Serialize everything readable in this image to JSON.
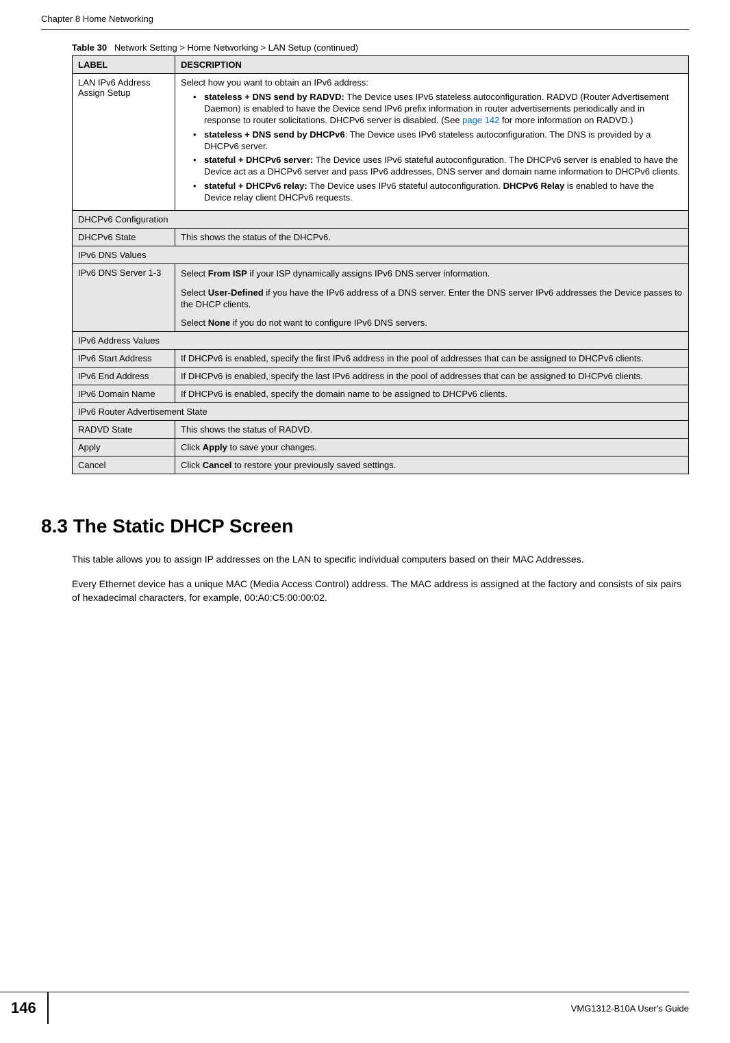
{
  "header": {
    "chapter": "Chapter 8 Home Networking"
  },
  "table": {
    "caption_prefix": "Table 30",
    "caption_text": "Network Setting > Home Networking > LAN Setup (continued)",
    "columns": {
      "label": "LABEL",
      "description": "DESCRIPTION"
    },
    "rows": {
      "lan_ipv6": {
        "label": "LAN IPv6 Address Assign Setup",
        "intro": "Select how you want to obtain an IPv6 address:",
        "b1_bold": "stateless + DNS send by RADVD:",
        "b1_text_a": " The Device uses IPv6 stateless autoconfiguration. RADVD (Router Advertisement Daemon) is enabled to have the Device send IPv6 prefix information in router advertisements periodically and in response to router solicitations. DHCPv6 server is disabled. (See ",
        "b1_link": "page 142",
        "b1_text_b": " for more information on RADVD.)",
        "b2_bold": "stateless + DNS send by DHCPv6",
        "b2_text": ": The Device uses IPv6 stateless autoconfiguration. The DNS is provided by a DHCPv6 server.",
        "b3_bold": "stateful + DHCPv6 server:",
        "b3_text": " The Device uses IPv6 stateful autoconfiguration. The DHCPv6 server is enabled to have the Device act as a DHCPv6 server and pass IPv6 addresses, DNS server and domain name information to DHCPv6 clients.",
        "b4_bold": "stateful + DHCPv6 relay:",
        "b4_text_a": " The Device uses IPv6 stateful autoconfiguration. ",
        "b4_bold2": "DHCPv6 Relay",
        "b4_text_b": " is enabled to have the Device relay client DHCPv6 requests."
      },
      "dhcpv6_config_header": "DHCPv6 Configuration",
      "dhcpv6_state": {
        "label": "DHCPv6 State",
        "desc": "This shows the status of the DHCPv6."
      },
      "ipv6_dns_values_header": "IPv6 DNS Values",
      "ipv6_dns_server": {
        "label": "IPv6 DNS Server 1-3",
        "p1_a": "Select ",
        "p1_bold": "From ISP",
        "p1_b": " if your ISP dynamically assigns IPv6 DNS server information.",
        "p2_a": "Select ",
        "p2_bold": "User-Defined",
        "p2_b": " if you have the IPv6 address of a DNS server. Enter the DNS server IPv6 addresses the Device passes to the DHCP clients.",
        "p3_a": "Select ",
        "p3_bold": "None",
        "p3_b": " if you do not want to configure IPv6 DNS servers."
      },
      "ipv6_addr_values_header": "IPv6 Address Values",
      "ipv6_start": {
        "label": "IPv6 Start Address",
        "desc": "If DHCPv6 is enabled, specify the first IPv6 address in the pool of addresses that can be assigned to DHCPv6 clients."
      },
      "ipv6_end": {
        "label": "IPv6 End Address",
        "desc": "If DHCPv6 is enabled, specify the last IPv6 address in the pool of addresses that can be assigned to DHCPv6 clients."
      },
      "ipv6_domain": {
        "label": "IPv6 Domain Name",
        "desc": "If DHCPv6 is enabled, specify the domain name to be assigned to DHCPv6 clients."
      },
      "ipv6_router_adv_header": "IPv6 Router Advertisement State",
      "radvd_state": {
        "label": "RADVD State",
        "desc": "This shows the status of RADVD."
      },
      "apply": {
        "label": "Apply",
        "desc_a": "Click ",
        "desc_bold": "Apply",
        "desc_b": " to save your changes."
      },
      "cancel": {
        "label": "Cancel",
        "desc_a": "Click ",
        "desc_bold": "Cancel",
        "desc_b": " to restore your previously saved settings."
      }
    }
  },
  "section": {
    "heading": "8.3  The Static DHCP Screen",
    "para1": "This table allows you to assign IP addresses on the LAN to specific individual computers based on their MAC Addresses.",
    "para2": "Every Ethernet device has a unique MAC (Media Access Control) address. The MAC address is assigned at the factory and consists of six pairs of hexadecimal characters, for example, 00:A0:C5:00:00:02."
  },
  "footer": {
    "page_number": "146",
    "guide": "VMG1312-B10A User's Guide"
  },
  "colors": {
    "header_gray": "#e6e6e6",
    "link": "#0066cc",
    "text": "#000000",
    "bg": "#ffffff"
  }
}
